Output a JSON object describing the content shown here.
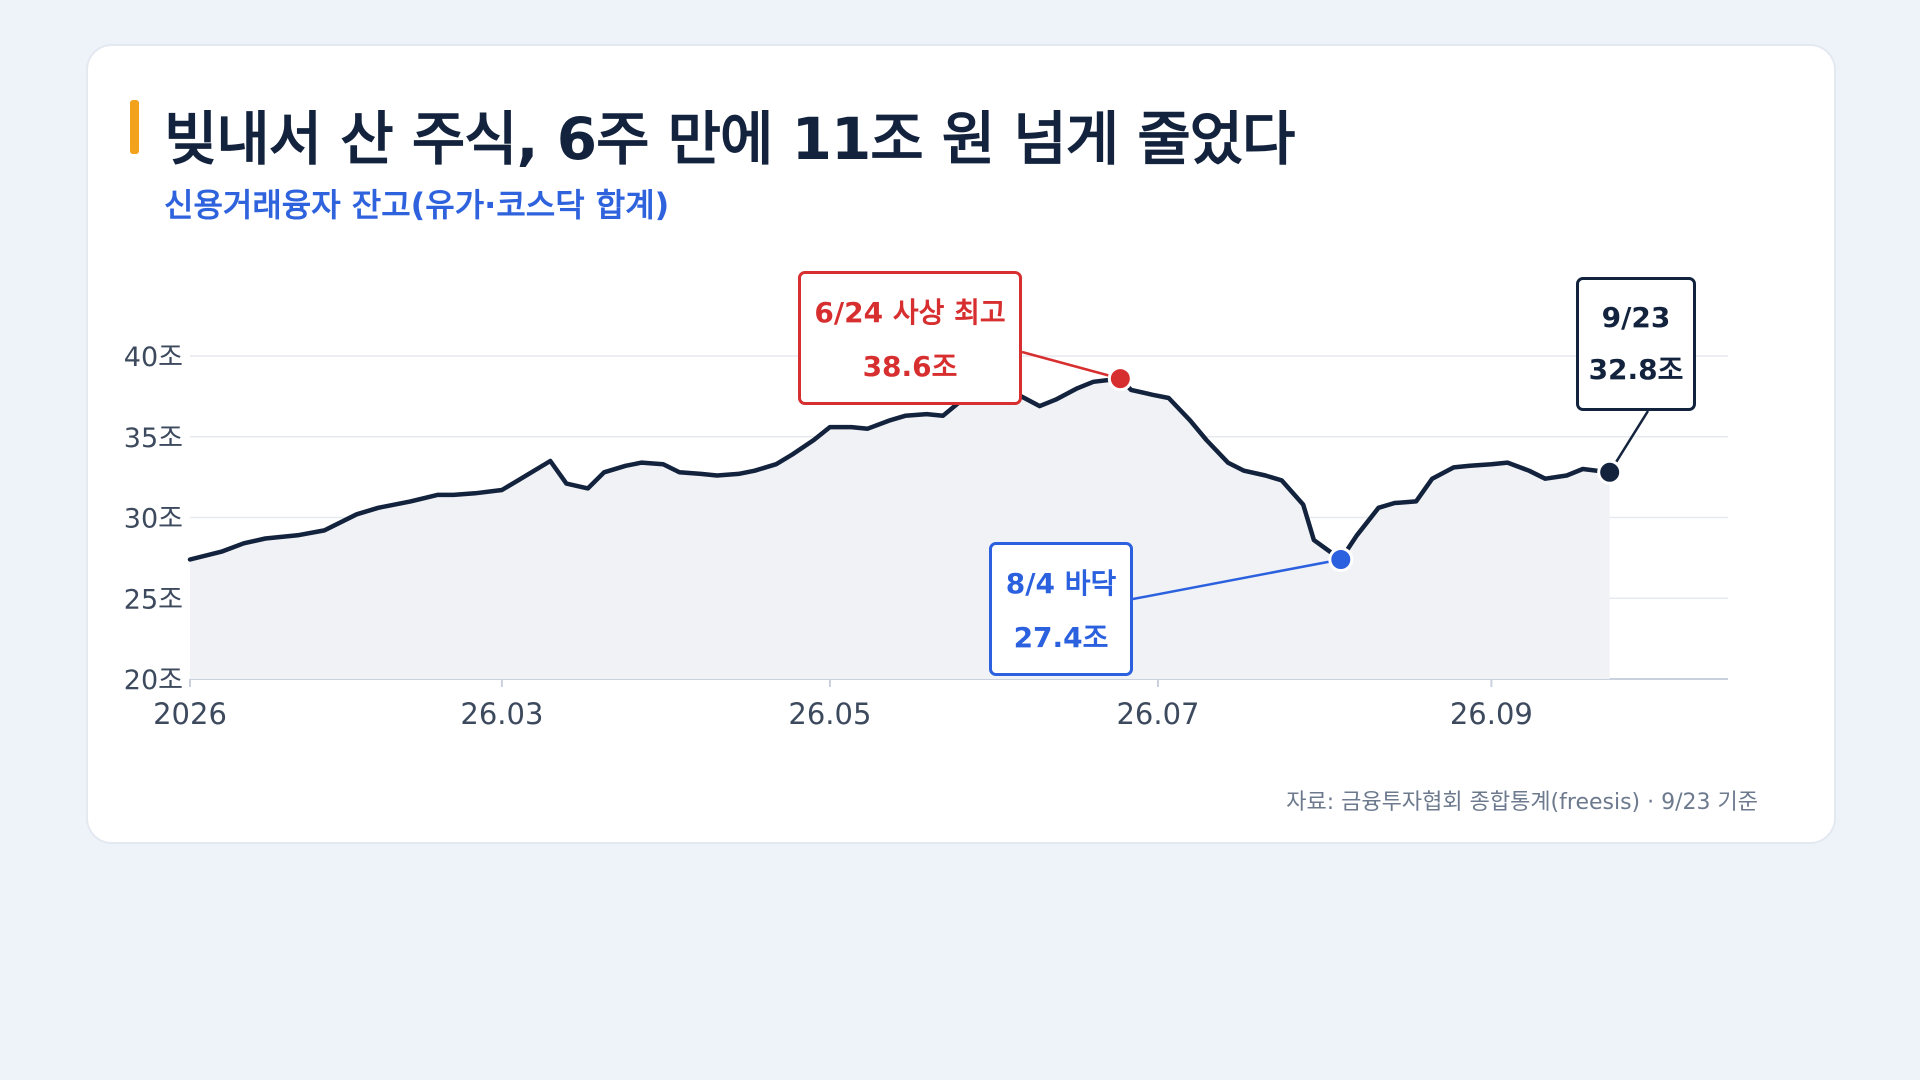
{
  "title": "빚내서 산 주식, 6주 만에 11조 원 넘게 줄었다",
  "subtitle": "신용거래융자 잔고(유가·코스닥 합계)",
  "source": "자료: 금융투자협회 종합통계(freesis) · 9/23 기준",
  "colors": {
    "line": "#13233d",
    "area": "#f0f2f5",
    "grid": "#e6e9ef",
    "peak": "#d72f2f",
    "low": "#2b60de",
    "last": "#13233d"
  },
  "annotations": {
    "peak": {
      "label": "6/24 사상 최고",
      "value": "38.6조"
    },
    "low": {
      "label": "8/4 바닥",
      "value": "27.4조"
    },
    "last": {
      "label": "9/23",
      "value": "32.8조"
    }
  },
  "chart_data": {
    "type": "area",
    "title": "빚내서 산 주식, 6주 만에 11조 원 넘게 줄었다",
    "subtitle": "신용거래융자 잔고(유가·코스닥 합계)",
    "y_unit": "조",
    "ylim": [
      20,
      40
    ],
    "yticks": [
      20,
      25,
      30,
      35,
      40
    ],
    "ytick_labels": [
      "20조",
      "25조",
      "30조",
      "35조",
      "40조"
    ],
    "xlim": [
      "2026-01-02",
      "2026-10-15"
    ],
    "xticks": [
      "2026-01-02",
      "2026-03-01",
      "2026-05-01",
      "2026-07-01",
      "2026-09-01"
    ],
    "xtick_labels": [
      "2026",
      "26.03",
      "26.05",
      "26.07",
      "26.09"
    ],
    "grid": true,
    "series": [
      {
        "x": [
          "2026-01-02",
          "2026-01-08",
          "2026-01-12",
          "2026-01-16",
          "2026-01-22",
          "2026-01-27",
          "2026-02-02",
          "2026-02-06",
          "2026-02-12",
          "2026-02-17",
          "2026-02-20",
          "2026-02-24",
          "2026-03-01",
          "2026-03-04",
          "2026-03-06",
          "2026-03-10",
          "2026-03-13",
          "2026-03-17",
          "2026-03-20",
          "2026-03-24",
          "2026-03-27",
          "2026-03-31",
          "2026-04-03",
          "2026-04-07",
          "2026-04-10",
          "2026-04-14",
          "2026-04-17",
          "2026-04-21",
          "2026-04-24",
          "2026-04-28",
          "2026-05-01",
          "2026-05-05",
          "2026-05-08",
          "2026-05-12",
          "2026-05-15",
          "2026-05-19",
          "2026-05-22",
          "2026-05-26",
          "2026-05-29",
          "2026-06-02",
          "2026-06-05",
          "2026-06-09",
          "2026-06-12",
          "2026-06-16",
          "2026-06-19",
          "2026-06-24",
          "2026-06-26",
          "2026-06-30",
          "2026-07-03",
          "2026-07-07",
          "2026-07-10",
          "2026-07-14",
          "2026-07-17",
          "2026-07-21",
          "2026-07-24",
          "2026-07-28",
          "2026-07-30",
          "2026-08-04",
          "2026-08-07",
          "2026-08-11",
          "2026-08-14",
          "2026-08-18",
          "2026-08-21",
          "2026-08-25",
          "2026-08-28",
          "2026-09-01",
          "2026-09-04",
          "2026-09-08",
          "2026-09-11",
          "2026-09-15",
          "2026-09-18",
          "2026-09-23"
        ],
        "values": [
          27.4,
          27.9,
          28.4,
          28.7,
          28.9,
          29.2,
          30.2,
          30.6,
          31.0,
          31.4,
          31.4,
          31.5,
          31.7,
          32.3,
          32.7,
          33.5,
          32.1,
          31.8,
          32.8,
          33.2,
          33.4,
          33.3,
          32.8,
          32.7,
          32.6,
          32.7,
          32.9,
          33.3,
          33.9,
          34.8,
          35.6,
          35.6,
          35.5,
          36.0,
          36.3,
          36.4,
          36.3,
          37.4,
          37.9,
          37.8,
          37.6,
          36.9,
          37.3,
          38.0,
          38.4,
          38.6,
          37.9,
          37.6,
          37.4,
          36.0,
          34.8,
          33.4,
          32.9,
          32.6,
          32.3,
          30.8,
          28.6,
          27.4,
          28.9,
          30.6,
          30.9,
          31.0,
          32.4,
          33.1,
          33.2,
          33.3,
          33.4,
          32.9,
          32.4,
          32.6,
          33.0,
          32.8
        ]
      }
    ],
    "annotations": [
      {
        "x": "2026-06-24",
        "y": 38.6,
        "label": "6/24 사상 최고",
        "value": "38.6조"
      },
      {
        "x": "2026-08-04",
        "y": 27.4,
        "label": "8/4 바닥",
        "value": "27.4조"
      },
      {
        "x": "2026-09-23",
        "y": 32.8,
        "label": "9/23",
        "value": "32.8조"
      }
    ]
  }
}
